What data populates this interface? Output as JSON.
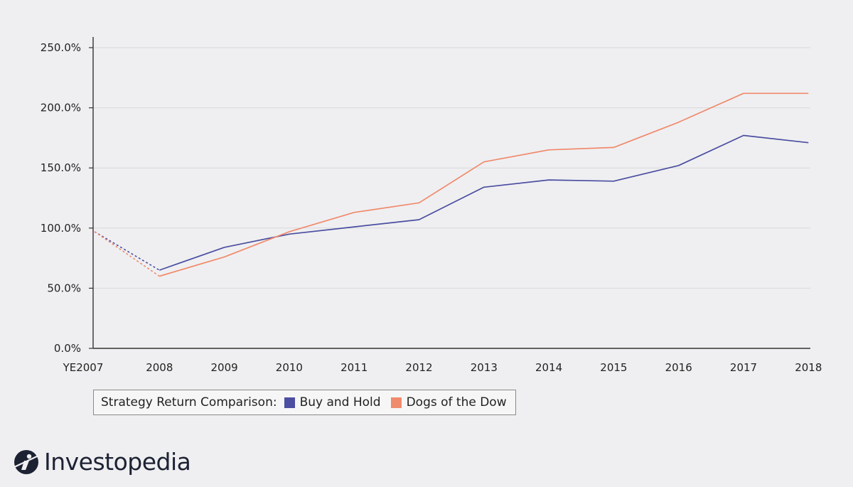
{
  "chart_data": {
    "type": "line",
    "categories": [
      "YE2007",
      "2008",
      "2009",
      "2010",
      "2011",
      "2012",
      "2013",
      "2014",
      "2015",
      "2016",
      "2017",
      "2018"
    ],
    "y_ticks": [
      "0.0%",
      "50.0%",
      "100.0%",
      "150.0%",
      "200.0%",
      "250.0%"
    ],
    "ylim": [
      0,
      250
    ],
    "grid": true,
    "legend_placement": "bottom-left",
    "legend_title": "Strategy Return Comparison:",
    "series": [
      {
        "name": "Buy and Hold",
        "color": "#4b4ea1",
        "values": [
          97,
          65,
          84,
          95,
          101,
          107,
          134,
          140,
          139,
          152,
          177,
          171
        ]
      },
      {
        "name": "Dogs of the Dow",
        "color": "#f08a6c",
        "values": [
          97,
          60,
          76,
          97,
          113,
          121,
          155,
          165,
          167,
          188,
          212,
          212
        ]
      }
    ],
    "dashed_segment": "YE2007 to 2008"
  },
  "brand": {
    "name": "Investopedia",
    "icon": "investopedia-logo-icon"
  }
}
